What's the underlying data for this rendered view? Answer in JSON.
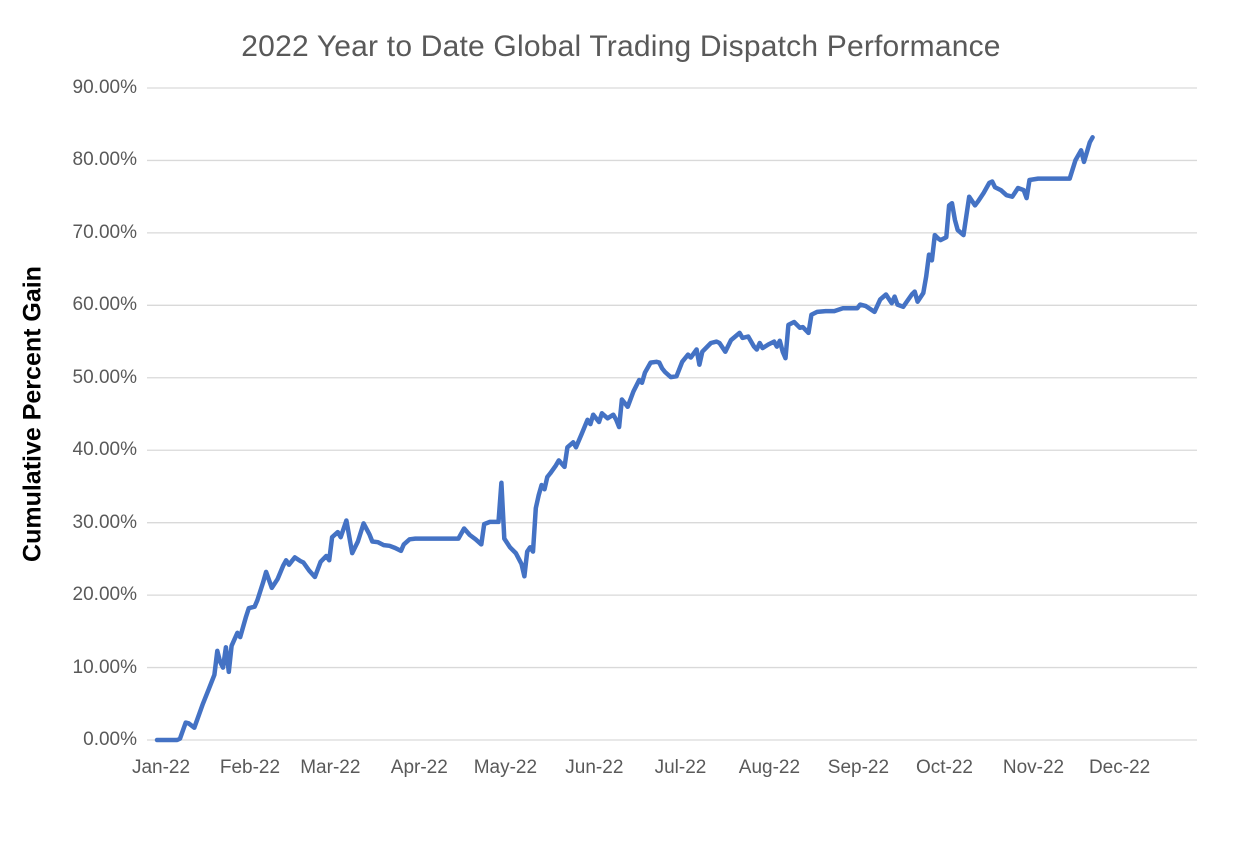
{
  "colors": {
    "line": "#4472C4",
    "gridline": "#D9D9D9",
    "tick_label": "#595959",
    "title": "#595959",
    "y_axis_title": "#000000",
    "background": "#FFFFFF"
  },
  "chart_data": {
    "type": "line",
    "title": "2022 Year to Date Global Trading Dispatch Performance",
    "xlabel": "",
    "ylabel": "Cumulative Percent Gain",
    "ylim": [
      0,
      90
    ],
    "grid": "horizontal",
    "legend": "none",
    "y_ticks": [
      {
        "label": "0.00%",
        "value": 0
      },
      {
        "label": "10.00%",
        "value": 10
      },
      {
        "label": "20.00%",
        "value": 20
      },
      {
        "label": "30.00%",
        "value": 30
      },
      {
        "label": "40.00%",
        "value": 40
      },
      {
        "label": "50.00%",
        "value": 50
      },
      {
        "label": "60.00%",
        "value": 60
      },
      {
        "label": "70.00%",
        "value": 70
      },
      {
        "label": "80.00%",
        "value": 80
      },
      {
        "label": "90.00%",
        "value": 90
      }
    ],
    "x_ticks": [
      {
        "label": "Jan-22",
        "day": 0
      },
      {
        "label": "Feb-22",
        "day": 31
      },
      {
        "label": "Mar-22",
        "day": 59
      },
      {
        "label": "Apr-22",
        "day": 90
      },
      {
        "label": "May-22",
        "day": 120
      },
      {
        "label": "Jun-22",
        "day": 151
      },
      {
        "label": "Jul-22",
        "day": 181
      },
      {
        "label": "Aug-22",
        "day": 212
      },
      {
        "label": "Sep-22",
        "day": 243
      },
      {
        "label": "Oct-22",
        "day": 273
      },
      {
        "label": "Nov-22",
        "day": 304
      },
      {
        "label": "Dec-22",
        "day": 334
      }
    ],
    "series": [
      {
        "name": "Cumulative Percent Gain",
        "color": "#4472C4",
        "x_unit": "days since Jan 1 2022",
        "y_unit": "percent",
        "points": [
          [
            0,
            0
          ],
          [
            4,
            0
          ],
          [
            7,
            0
          ],
          [
            8,
            0.2
          ],
          [
            10,
            2.4
          ],
          [
            11,
            2.3
          ],
          [
            13,
            1.7
          ],
          [
            14,
            2.8
          ],
          [
            16,
            5
          ],
          [
            18,
            7
          ],
          [
            20,
            9
          ],
          [
            21,
            12.3
          ],
          [
            22,
            10.8
          ],
          [
            23,
            10
          ],
          [
            24,
            12.8
          ],
          [
            25,
            9.4
          ],
          [
            26,
            13
          ],
          [
            28,
            14.8
          ],
          [
            29,
            14.2
          ],
          [
            31,
            17
          ],
          [
            32,
            18.2
          ],
          [
            34,
            18.4
          ],
          [
            35,
            19.3
          ],
          [
            37,
            21.8
          ],
          [
            38,
            23.2
          ],
          [
            40,
            21
          ],
          [
            42,
            22.2
          ],
          [
            44,
            24.1
          ],
          [
            45,
            24.8
          ],
          [
            46,
            24.2
          ],
          [
            48,
            25.2
          ],
          [
            50,
            24.7
          ],
          [
            51,
            24.5
          ],
          [
            53,
            23.4
          ],
          [
            55,
            22.5
          ],
          [
            57,
            24.6
          ],
          [
            59,
            25.4
          ],
          [
            60,
            24.8
          ],
          [
            61,
            28
          ],
          [
            63,
            28.7
          ],
          [
            64,
            28
          ],
          [
            66,
            30.3
          ],
          [
            68,
            25.8
          ],
          [
            70,
            27.4
          ],
          [
            72,
            29.9
          ],
          [
            74,
            28.4
          ],
          [
            75,
            27.4
          ],
          [
            77,
            27.3
          ],
          [
            79,
            26.9
          ],
          [
            81,
            26.8
          ],
          [
            83,
            26.5
          ],
          [
            85,
            26.1
          ],
          [
            86,
            27
          ],
          [
            88,
            27.7
          ],
          [
            90,
            27.8
          ],
          [
            94,
            27.8
          ],
          [
            98,
            27.8
          ],
          [
            102,
            27.8
          ],
          [
            105,
            27.8
          ],
          [
            107,
            29.2
          ],
          [
            109,
            28.3
          ],
          [
            111,
            27.7
          ],
          [
            113,
            27
          ],
          [
            114,
            29.8
          ],
          [
            116,
            30.1
          ],
          [
            119,
            30.1
          ],
          [
            120,
            35.5
          ],
          [
            121,
            27.8
          ],
          [
            123,
            26.6
          ],
          [
            125,
            25.8
          ],
          [
            127,
            24.3
          ],
          [
            128,
            22.6
          ],
          [
            129,
            26
          ],
          [
            130,
            26.6
          ],
          [
            131,
            26
          ],
          [
            132,
            32
          ],
          [
            133,
            33.8
          ],
          [
            134,
            35.2
          ],
          [
            135,
            34.6
          ],
          [
            136,
            36.3
          ],
          [
            137,
            36.8
          ],
          [
            139,
            37.9
          ],
          [
            140,
            38.6
          ],
          [
            142,
            37.7
          ],
          [
            143,
            40.4
          ],
          [
            145,
            41.1
          ],
          [
            146,
            40.4
          ],
          [
            148,
            42.3
          ],
          [
            150,
            44.2
          ],
          [
            151,
            43.6
          ],
          [
            152,
            44.9
          ],
          [
            154,
            43.9
          ],
          [
            155,
            45.1
          ],
          [
            157,
            44.4
          ],
          [
            159,
            44.9
          ],
          [
            160,
            44.2
          ],
          [
            161,
            43.2
          ],
          [
            162,
            47
          ],
          [
            164,
            46
          ],
          [
            166,
            48.1
          ],
          [
            168,
            49.7
          ],
          [
            169,
            49.3
          ],
          [
            170,
            50.7
          ],
          [
            172,
            52.1
          ],
          [
            174,
            52.2
          ],
          [
            175,
            52.1
          ],
          [
            176,
            51.3
          ],
          [
            177,
            50.8
          ],
          [
            179,
            50.1
          ],
          [
            181,
            50.2
          ],
          [
            183,
            52.2
          ],
          [
            185,
            53.2
          ],
          [
            186,
            52.8
          ],
          [
            188,
            53.9
          ],
          [
            189,
            51.8
          ],
          [
            190,
            53.6
          ],
          [
            193,
            54.8
          ],
          [
            195,
            55
          ],
          [
            196,
            54.8
          ],
          [
            198,
            53.6
          ],
          [
            200,
            55.2
          ],
          [
            203,
            56.2
          ],
          [
            204,
            55.5
          ],
          [
            206,
            55.7
          ],
          [
            208,
            54.3
          ],
          [
            209,
            53.9
          ],
          [
            210,
            54.8
          ],
          [
            211,
            54.1
          ],
          [
            213,
            54.6
          ],
          [
            215,
            55
          ],
          [
            216,
            54.3
          ],
          [
            217,
            55.1
          ],
          [
            218,
            53.6
          ],
          [
            219,
            52.7
          ],
          [
            220,
            57.3
          ],
          [
            222,
            57.7
          ],
          [
            224,
            56.9
          ],
          [
            225,
            57
          ],
          [
            227,
            56.2
          ],
          [
            228,
            58.7
          ],
          [
            230,
            59.1
          ],
          [
            233,
            59.2
          ],
          [
            236,
            59.2
          ],
          [
            239,
            59.6
          ],
          [
            242,
            59.6
          ],
          [
            244,
            59.6
          ],
          [
            245,
            60.1
          ],
          [
            247,
            59.9
          ],
          [
            250,
            59.1
          ],
          [
            252,
            60.8
          ],
          [
            254,
            61.5
          ],
          [
            256,
            60.3
          ],
          [
            257,
            61.2
          ],
          [
            258,
            60.1
          ],
          [
            260,
            59.8
          ],
          [
            263,
            61.5
          ],
          [
            264,
            61.9
          ],
          [
            265,
            60.5
          ],
          [
            267,
            61.7
          ],
          [
            268,
            64
          ],
          [
            269,
            67
          ],
          [
            270,
            66.2
          ],
          [
            271,
            69.7
          ],
          [
            272,
            69.3
          ],
          [
            273,
            69
          ],
          [
            275,
            69.4
          ],
          [
            276,
            73.8
          ],
          [
            277,
            74.1
          ],
          [
            278,
            71.8
          ],
          [
            279,
            70.4
          ],
          [
            281,
            69.7
          ],
          [
            283,
            75
          ],
          [
            285,
            73.8
          ],
          [
            286,
            74.3
          ],
          [
            288,
            75.5
          ],
          [
            290,
            76.9
          ],
          [
            291,
            77.1
          ],
          [
            292,
            76.3
          ],
          [
            294,
            75.9
          ],
          [
            296,
            75.2
          ],
          [
            298,
            75
          ],
          [
            300,
            76.2
          ],
          [
            302,
            75.9
          ],
          [
            303,
            74.8
          ],
          [
            304,
            77.3
          ],
          [
            307,
            77.5
          ],
          [
            311,
            77.5
          ],
          [
            315,
            77.5
          ],
          [
            318,
            77.5
          ],
          [
            320,
            80
          ],
          [
            322,
            81.4
          ],
          [
            323,
            79.8
          ],
          [
            325,
            82.5
          ],
          [
            326,
            83.2
          ]
        ]
      }
    ]
  }
}
